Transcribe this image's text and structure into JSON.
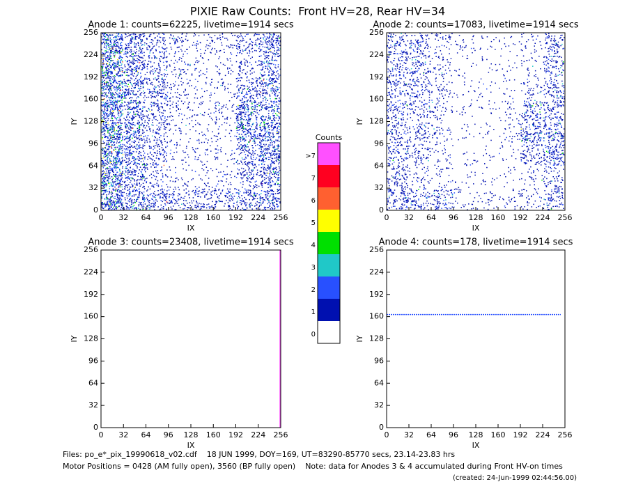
{
  "title": "PIXIE Raw Counts:  Front HV=28, Rear HV=34",
  "chart_data": [
    {
      "type": "heatmap",
      "title": "Anode 1: counts=62225, livetime=1914 secs",
      "xlabel": "IX",
      "ylabel": "IY",
      "xlim": [
        0,
        256
      ],
      "ylim": [
        0,
        256
      ],
      "xticks": [
        0,
        32,
        64,
        96,
        128,
        160,
        192,
        224,
        256
      ],
      "yticks": [
        0,
        32,
        64,
        96,
        128,
        160,
        192,
        224,
        256
      ],
      "density": [
        [
          0.8,
          0.5,
          0.4,
          0.3,
          0.3,
          0.3,
          0.4,
          0.5
        ],
        [
          0.8,
          0.5,
          0.2,
          0.1,
          0.1,
          0.1,
          0.3,
          0.5
        ],
        [
          0.8,
          0.5,
          0.3,
          0.1,
          0.1,
          0.1,
          0.4,
          0.6
        ],
        [
          0.8,
          0.6,
          0.3,
          0.1,
          0.1,
          0.1,
          0.6,
          0.6
        ],
        [
          0.8,
          0.5,
          0.3,
          0.15,
          0.1,
          0.15,
          0.6,
          0.5
        ],
        [
          0.8,
          0.5,
          0.4,
          0.15,
          0.1,
          0.1,
          0.4,
          0.5
        ],
        [
          0.8,
          0.5,
          0.3,
          0.15,
          0.1,
          0.1,
          0.2,
          0.4
        ],
        [
          0.8,
          0.5,
          0.3,
          0.2,
          0.15,
          0.15,
          0.3,
          0.5
        ]
      ],
      "segments": []
    },
    {
      "type": "heatmap",
      "title": "Anode 2: counts=17083, livetime=1914 secs",
      "xlabel": "IX",
      "ylabel": "IY",
      "xlim": [
        0,
        256
      ],
      "ylim": [
        0,
        256
      ],
      "xticks": [
        0,
        32,
        64,
        96,
        128,
        160,
        192,
        224,
        256
      ],
      "yticks": [
        0,
        32,
        64,
        96,
        128,
        160,
        192,
        224,
        256
      ],
      "density": [
        [
          0.4,
          0.3,
          0.3,
          0.1,
          0.1,
          0.1,
          0.15,
          0.3
        ],
        [
          0.3,
          0.15,
          0.1,
          0.05,
          0.05,
          0.05,
          0.1,
          0.2
        ],
        [
          0.3,
          0.25,
          0.1,
          0.05,
          0.05,
          0.05,
          0.3,
          0.45
        ],
        [
          0.3,
          0.25,
          0.15,
          0.05,
          0.05,
          0.1,
          0.45,
          0.4
        ],
        [
          0.3,
          0.25,
          0.15,
          0.05,
          0.05,
          0.1,
          0.35,
          0.35
        ],
        [
          0.3,
          0.3,
          0.15,
          0.05,
          0.05,
          0.05,
          0.15,
          0.3
        ],
        [
          0.3,
          0.3,
          0.15,
          0.05,
          0.05,
          0.05,
          0.1,
          0.3
        ],
        [
          0.35,
          0.3,
          0.15,
          0.1,
          0.05,
          0.05,
          0.1,
          0.3
        ]
      ],
      "segments": []
    },
    {
      "type": "heatmap",
      "title": "Anode 3: counts=23408, livetime=1914 secs",
      "xlabel": "IX",
      "ylabel": "IY",
      "xlim": [
        0,
        256
      ],
      "ylim": [
        0,
        256
      ],
      "xticks": [
        0,
        32,
        64,
        96,
        128,
        160,
        192,
        224,
        256
      ],
      "yticks": [
        0,
        32,
        64,
        96,
        128,
        160,
        192,
        224,
        256
      ],
      "density": [],
      "segments": [
        {
          "x": [
            255,
            255
          ],
          "y": [
            0,
            256
          ],
          "color": "#ff50ff"
        }
      ]
    },
    {
      "type": "heatmap",
      "title": "Anode 4: counts=178, livetime=1914 secs",
      "xlabel": "IX",
      "ylabel": "IY",
      "xlim": [
        0,
        256
      ],
      "ylim": [
        0,
        256
      ],
      "xticks": [
        0,
        32,
        64,
        96,
        128,
        160,
        192,
        224,
        256
      ],
      "yticks": [
        0,
        32,
        64,
        96,
        128,
        160,
        192,
        224,
        256
      ],
      "density": [],
      "segments": [
        {
          "x": [
            0,
            250
          ],
          "y": [
            163,
            163
          ],
          "color": "#2850ff"
        }
      ]
    }
  ],
  "colorbar": {
    "title": "Counts",
    "labels": [
      "0",
      "1",
      "2",
      "3",
      "4",
      "5",
      "6",
      "7",
      ">7"
    ],
    "colors": [
      "#ffffff",
      "#0010b0",
      "#2850ff",
      "#20c8c8",
      "#00e000",
      "#ffff00",
      "#ff6030",
      "#ff0020",
      "#ff50ff"
    ]
  },
  "footer": {
    "files": "Files: po_e*_pix_19990618_v02.cdf    18 JUN 1999, DOY=169, UT=83290-85770 secs, 23.14-23.83 hrs",
    "motor": "Motor Positions = 0428 (AM fully open), 3560 (BP fully open)    Note: data for Anodes 3 & 4 accumulated during Front HV-on times",
    "created": "(created: 24-Jun-1999 02:44:56.00)"
  }
}
